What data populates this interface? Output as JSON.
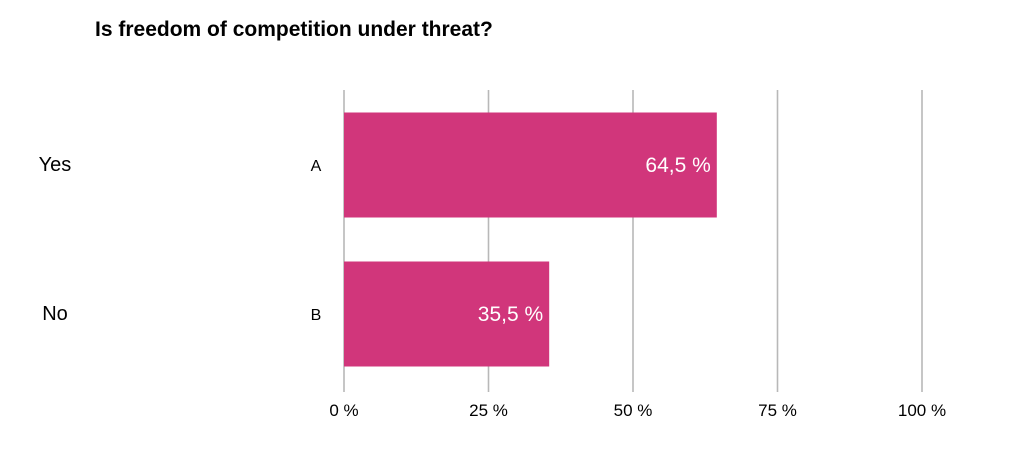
{
  "chart_data": {
    "type": "bar",
    "orientation": "horizontal",
    "title": "Is freedom of competition under threat?",
    "categories": [
      "A",
      "B"
    ],
    "answers": [
      "Yes",
      "No"
    ],
    "values": [
      64.5,
      35.5
    ],
    "value_labels": [
      "64,5 %",
      "35,5 %"
    ],
    "xlim": [
      0,
      100
    ],
    "x_ticks": [
      0,
      25,
      50,
      75,
      100
    ],
    "x_tick_labels": [
      "0 %",
      "25 %",
      "50 %",
      "75 %",
      "100 %"
    ],
    "grid": true,
    "bar_color": "#d1367b",
    "grid_color": "#b8b8b8"
  }
}
